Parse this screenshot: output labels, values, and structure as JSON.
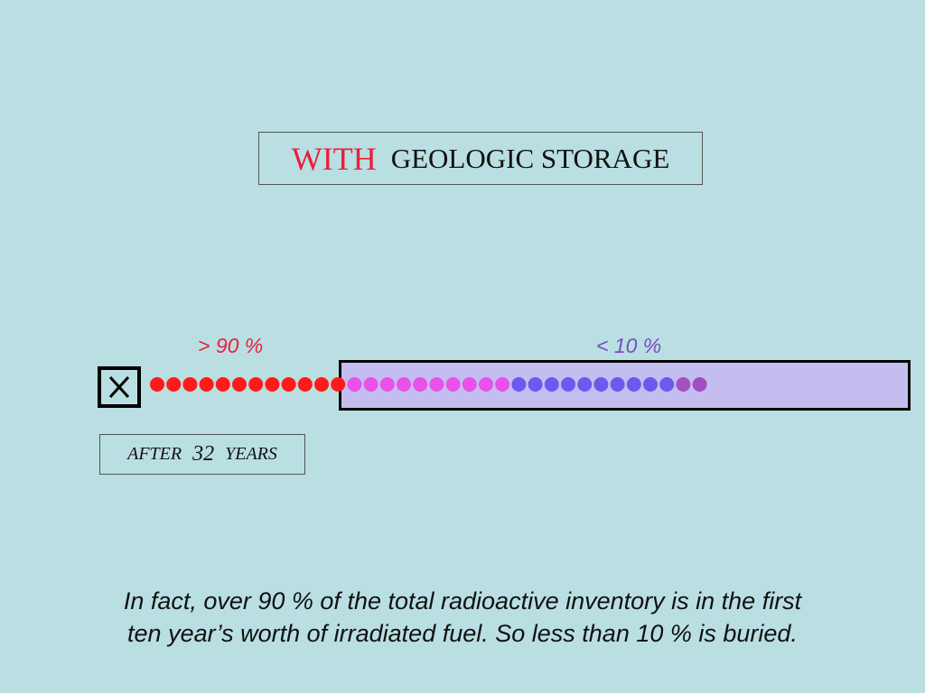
{
  "title": {
    "emphasis": "WITH",
    "rest": "GEOLOGIC STORAGE"
  },
  "labels": {
    "left_percent": "> 90 %",
    "right_percent": "< 10 %"
  },
  "after": {
    "prefix": "AFTER",
    "years": "32",
    "suffix": "YEARS"
  },
  "caption": {
    "line1": "In fact, over 90 % of the total radioactive inventory is in the first",
    "line2": "ten year’s worth of irradiated fuel.  So less than 10 % is buried."
  },
  "colors": {
    "background": "#b9dfe2",
    "emphasis": "#e8203a",
    "right_label": "#7a4bc4",
    "storage_fill": "#c4bef0",
    "dot_groups": [
      "#ff1a1a",
      "#ea50ea",
      "#6a5af0",
      "#a44fbf"
    ]
  },
  "dot_groups": [
    {
      "count": 12,
      "color": "#ff1a1a"
    },
    {
      "count": 10,
      "color": "#ea50ea"
    },
    {
      "count": 10,
      "color": "#6a5af0"
    },
    {
      "count": 2,
      "color": "#a44fbf"
    }
  ],
  "icons": {
    "storage_marker": "x-box-icon"
  }
}
